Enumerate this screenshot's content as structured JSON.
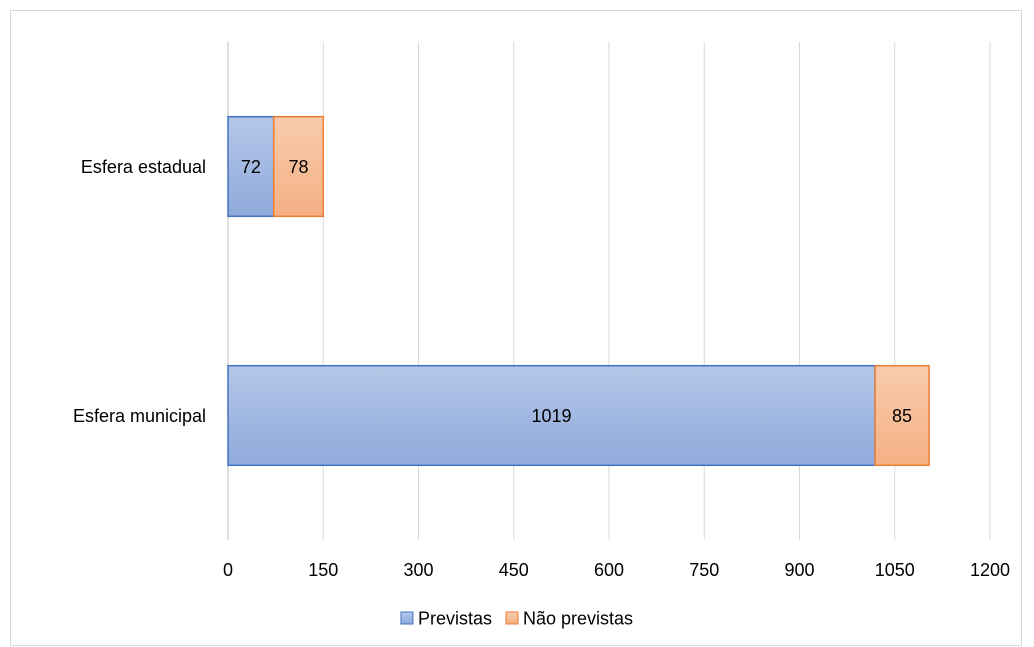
{
  "chart_data": {
    "type": "bar",
    "orientation": "horizontal",
    "stacked": true,
    "categories": [
      "Esfera estadual",
      "Esfera municipal"
    ],
    "series": [
      {
        "name": "Previstas",
        "values": [
          72,
          1019
        ],
        "color": "#8FAADC",
        "edge_color": "#4472C4"
      },
      {
        "name": "Não previstas",
        "values": [
          78,
          85
        ],
        "color": "#F4B183",
        "edge_color": "#ED7D31"
      }
    ],
    "xlim": [
      0,
      1200
    ],
    "xticks": [
      0,
      150,
      300,
      450,
      600,
      750,
      900,
      1050,
      1200
    ],
    "grid": true,
    "legend_position": "bottom",
    "data_labels": true
  }
}
